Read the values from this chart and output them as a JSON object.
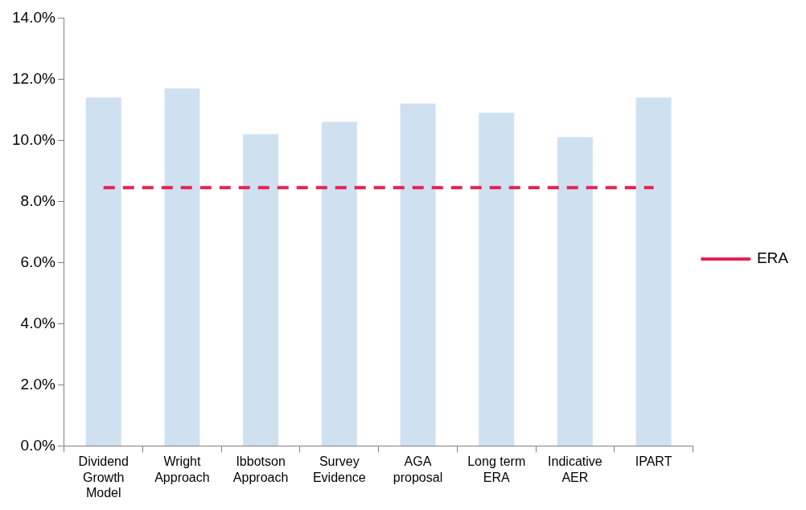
{
  "chart_data": {
    "type": "bar",
    "categories": [
      "Dividend Growth Model",
      "Wright Approach",
      "Ibbotson Approach",
      "Survey Evidence",
      "AGA proposal",
      "Long term ERA",
      "Indicative AER",
      "IPART"
    ],
    "series": [
      {
        "color": "#cfe0f1",
        "values": [
          11.4,
          11.7,
          10.2,
          10.6,
          11.2,
          10.9,
          10.1,
          11.4
        ]
      },
      {
        "type": "line",
        "name": "ERA",
        "color": "#e8204f",
        "line_style": "dashed",
        "values": [
          8.45,
          8.45,
          8.45,
          8.45,
          8.45,
          8.45,
          8.45,
          8.45
        ]
      }
    ],
    "ylim": [
      0,
      14
    ],
    "yticks": [
      {
        "value": 0,
        "label": "0.0%"
      },
      {
        "value": 2,
        "label": "2.0%"
      },
      {
        "value": 4,
        "label": "4.0%"
      },
      {
        "value": 6,
        "label": "6.0%"
      },
      {
        "value": 8,
        "label": "8.0%"
      },
      {
        "value": 10,
        "label": "10.0%"
      },
      {
        "value": 12,
        "label": "12.0%"
      },
      {
        "value": 14,
        "label": "14.0%"
      }
    ],
    "grid": false,
    "legend": "right",
    "marker": "none"
  }
}
